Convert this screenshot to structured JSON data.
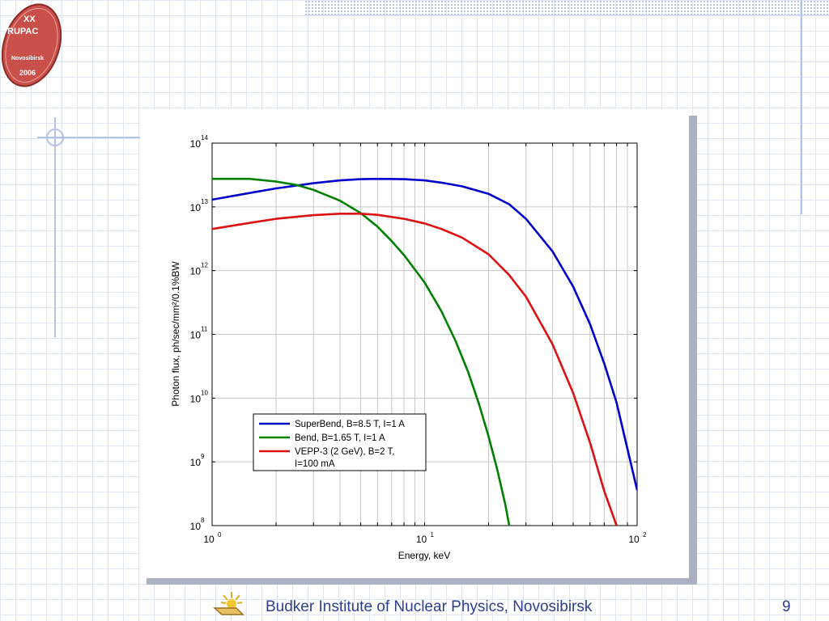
{
  "logo": {
    "line1": "XX",
    "line2": "RUPAC",
    "line3": "Novosibirsk",
    "line4": "2006",
    "fill_color": "#c9504a"
  },
  "footer": {
    "text": "Budker Institute of Nuclear Physics, Novosibirsk",
    "page_number": "9",
    "text_color": "#2e3f8f"
  },
  "chart_data": {
    "type": "line",
    "x_scale": "log",
    "y_scale": "log",
    "xlim": [
      1,
      100
    ],
    "ylim": [
      100000000.0,
      100000000000000.0
    ],
    "xlabel": "Energy, keV",
    "ylabel": "Photon flux, ph/sec/mm²/0.1%BW",
    "grid": true,
    "legend_position": "lower-left",
    "x_ticks": [
      {
        "value": 1,
        "label": "10",
        "exp": "0"
      },
      {
        "value": 10,
        "label": "10",
        "exp": "1"
      },
      {
        "value": 100,
        "label": "10",
        "exp": "2"
      }
    ],
    "y_ticks": [
      {
        "value": 100000000.0,
        "label": "10",
        "exp": "8"
      },
      {
        "value": 1000000000.0,
        "label": "10",
        "exp": "9"
      },
      {
        "value": 10000000000.0,
        "label": "10",
        "exp": "10"
      },
      {
        "value": 100000000000.0,
        "label": "10",
        "exp": "11"
      },
      {
        "value": 1000000000000.0,
        "label": "10",
        "exp": "12"
      },
      {
        "value": 10000000000000.0,
        "label": "10",
        "exp": "13"
      },
      {
        "value": 100000000000000.0,
        "label": "10",
        "exp": "14"
      }
    ],
    "series": [
      {
        "name": "SuperBend, B=8.5 T, I=1 A",
        "color": "#0000cc",
        "x": [
          1,
          1.5,
          2,
          3,
          4,
          5,
          6,
          8,
          10,
          12,
          15,
          20,
          25,
          30,
          40,
          50,
          60,
          70,
          80,
          90,
          100
        ],
        "y": [
          13000000000000.0,
          16500000000000.0,
          19500000000000.0,
          23500000000000.0,
          26000000000000.0,
          27200000000000.0,
          27500000000000.0,
          27200000000000.0,
          26000000000000.0,
          24000000000000.0,
          21000000000000.0,
          16000000000000.0,
          11000000000000.0,
          6500000000000.0,
          2000000000000.0,
          560000000000.0,
          145000000000.0,
          35000000000.0,
          8500000000.0,
          1600000000.0,
          360000000.0
        ]
      },
      {
        "name": "Bend, B=1.65 T, I=1 A",
        "color": "#008000",
        "x": [
          1,
          1.5,
          2,
          2.5,
          3,
          4,
          5,
          6,
          7,
          8,
          10,
          12,
          14,
          16,
          18,
          20,
          22,
          24,
          25
        ],
        "y": [
          27500000000000.0,
          27500000000000.0,
          25000000000000.0,
          22000000000000.0,
          18500000000000.0,
          12500000000000.0,
          8000000000000.0,
          4900000000000.0,
          2900000000000.0,
          1750000000000.0,
          650000000000.0,
          230000000000.0,
          78000000000.0,
          26000000000.0,
          8200000000.0,
          2500000000.0,
          740000000.0,
          210000000.0,
          100000000.0
        ]
      },
      {
        "name": "VEPP-3 (2 GeV), B=2 T,",
        "name_line2": "I=100 mA",
        "color": "#dd1111",
        "x": [
          1,
          1.5,
          2,
          3,
          4,
          5,
          6,
          8,
          10,
          12,
          15,
          20,
          25,
          30,
          40,
          50,
          60,
          70,
          80
        ],
        "y": [
          4500000000000.0,
          5600000000000.0,
          6500000000000.0,
          7400000000000.0,
          7800000000000.0,
          7800000000000.0,
          7500000000000.0,
          6500000000000.0,
          5500000000000.0,
          4500000000000.0,
          3300000000000.0,
          1800000000000.0,
          850000000000.0,
          390000000000.0,
          70000000000.0,
          12000000000.0,
          2000000000.0,
          350000000.0,
          100000000.0
        ]
      }
    ]
  }
}
